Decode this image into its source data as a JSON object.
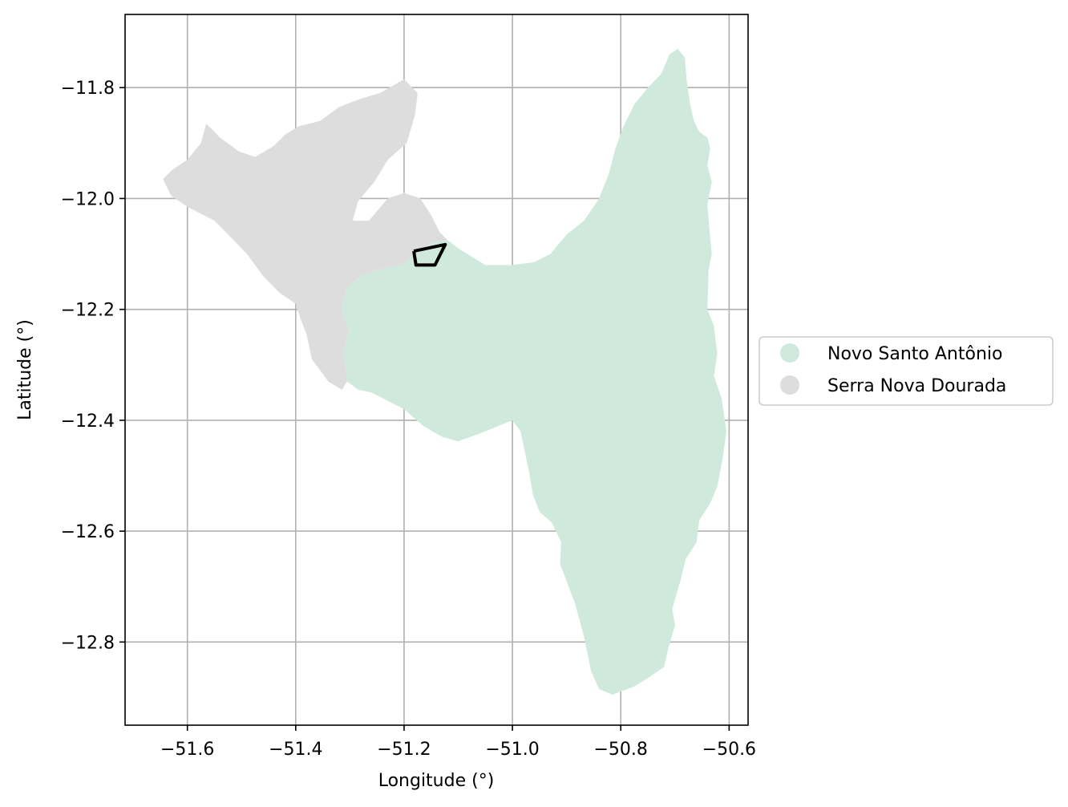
{
  "map": {
    "xlabel": "Longitude (°)",
    "ylabel": "Latitude (°)",
    "x_ticks": [
      {
        "value": -51.6,
        "label": "−51.6"
      },
      {
        "value": -51.4,
        "label": "−51.4"
      },
      {
        "value": -51.2,
        "label": "−51.2"
      },
      {
        "value": -51.0,
        "label": "−51.0"
      },
      {
        "value": -50.8,
        "label": "−50.8"
      },
      {
        "value": -50.6,
        "label": "−50.6"
      }
    ],
    "y_ticks": [
      {
        "value": -11.8,
        "label": "−11.8"
      },
      {
        "value": -12.0,
        "label": "−12.0"
      },
      {
        "value": -12.2,
        "label": "−12.2"
      },
      {
        "value": -12.4,
        "label": "−12.4"
      },
      {
        "value": -12.6,
        "label": "−12.6"
      },
      {
        "value": -12.8,
        "label": "−12.8"
      }
    ],
    "xlim": [
      -51.715,
      -50.565
    ],
    "ylim": [
      -12.95,
      -11.668
    ],
    "grid": true,
    "legend_position": "center-right, outside plot",
    "regions": [
      {
        "name": "Novo Santo Antônio",
        "color": "#cfeadd",
        "outline": [
          [
            -50.695,
            -11.73
          ],
          [
            -50.682,
            -11.745
          ],
          [
            -50.678,
            -11.79
          ],
          [
            -50.672,
            -11.83
          ],
          [
            -50.665,
            -11.86
          ],
          [
            -50.655,
            -11.88
          ],
          [
            -50.64,
            -11.89
          ],
          [
            -50.635,
            -11.91
          ],
          [
            -50.64,
            -11.94
          ],
          [
            -50.632,
            -11.97
          ],
          [
            -50.64,
            -12.01
          ],
          [
            -50.637,
            -12.05
          ],
          [
            -50.632,
            -12.1
          ],
          [
            -50.638,
            -12.13
          ],
          [
            -50.64,
            -12.2
          ],
          [
            -50.628,
            -12.23
          ],
          [
            -50.622,
            -12.28
          ],
          [
            -50.628,
            -12.32
          ],
          [
            -50.614,
            -12.36
          ],
          [
            -50.605,
            -12.42
          ],
          [
            -50.612,
            -12.47
          ],
          [
            -50.622,
            -12.52
          ],
          [
            -50.635,
            -12.55
          ],
          [
            -50.655,
            -12.58
          ],
          [
            -50.66,
            -12.62
          ],
          [
            -50.68,
            -12.65
          ],
          [
            -50.69,
            -12.69
          ],
          [
            -50.705,
            -12.74
          ],
          [
            -50.7,
            -12.77
          ],
          [
            -50.712,
            -12.81
          ],
          [
            -50.72,
            -12.845
          ],
          [
            -50.75,
            -12.865
          ],
          [
            -50.775,
            -12.88
          ],
          [
            -50.815,
            -12.895
          ],
          [
            -50.84,
            -12.885
          ],
          [
            -50.855,
            -12.852
          ],
          [
            -50.868,
            -12.79
          ],
          [
            -50.883,
            -12.735
          ],
          [
            -50.9,
            -12.69
          ],
          [
            -50.912,
            -12.66
          ],
          [
            -50.91,
            -12.62
          ],
          [
            -50.927,
            -12.585
          ],
          [
            -50.95,
            -12.565
          ],
          [
            -50.962,
            -12.535
          ],
          [
            -50.97,
            -12.49
          ],
          [
            -50.985,
            -12.42
          ],
          [
            -51.0,
            -12.4
          ],
          [
            -51.05,
            -12.42
          ],
          [
            -51.1,
            -12.438
          ],
          [
            -51.13,
            -12.43
          ],
          [
            -51.165,
            -12.41
          ],
          [
            -51.2,
            -12.38
          ],
          [
            -51.26,
            -12.35
          ],
          [
            -51.285,
            -12.345
          ],
          [
            -51.305,
            -12.33
          ],
          [
            -51.312,
            -12.28
          ],
          [
            -51.302,
            -12.24
          ],
          [
            -51.315,
            -12.2
          ],
          [
            -51.305,
            -12.16
          ],
          [
            -51.28,
            -12.14
          ],
          [
            -51.245,
            -12.128
          ],
          [
            -51.205,
            -12.12
          ],
          [
            -51.18,
            -12.1
          ],
          [
            -51.15,
            -12.08
          ],
          [
            -51.12,
            -12.075
          ],
          [
            -51.1,
            -12.09
          ],
          [
            -51.05,
            -12.12
          ],
          [
            -51.0,
            -12.12
          ],
          [
            -50.96,
            -12.115
          ],
          [
            -50.93,
            -12.1
          ],
          [
            -50.9,
            -12.065
          ],
          [
            -50.868,
            -12.04
          ],
          [
            -50.84,
            -12.0
          ],
          [
            -50.822,
            -11.955
          ],
          [
            -50.81,
            -11.91
          ],
          [
            -50.795,
            -11.87
          ],
          [
            -50.775,
            -11.83
          ],
          [
            -50.75,
            -11.8
          ],
          [
            -50.725,
            -11.775
          ],
          [
            -50.71,
            -11.74
          ],
          [
            -50.695,
            -11.73
          ]
        ]
      },
      {
        "name": "Serra Nova Dourada",
        "color": "#dddddd",
        "outline": [
          [
            -51.645,
            -11.965
          ],
          [
            -51.63,
            -11.95
          ],
          [
            -51.6,
            -11.93
          ],
          [
            -51.575,
            -11.9
          ],
          [
            -51.565,
            -11.865
          ],
          [
            -51.54,
            -11.89
          ],
          [
            -51.505,
            -11.915
          ],
          [
            -51.475,
            -11.925
          ],
          [
            -51.44,
            -11.905
          ],
          [
            -51.42,
            -11.885
          ],
          [
            -51.395,
            -11.87
          ],
          [
            -51.355,
            -11.86
          ],
          [
            -51.32,
            -11.835
          ],
          [
            -51.28,
            -11.82
          ],
          [
            -51.245,
            -11.81
          ],
          [
            -51.2,
            -11.785
          ],
          [
            -51.175,
            -11.81
          ],
          [
            -51.18,
            -11.85
          ],
          [
            -51.195,
            -11.9
          ],
          [
            -51.23,
            -11.93
          ],
          [
            -51.255,
            -11.97
          ],
          [
            -51.285,
            -12.005
          ],
          [
            -51.295,
            -12.04
          ],
          [
            -51.265,
            -12.04
          ],
          [
            -51.23,
            -12.0
          ],
          [
            -51.2,
            -11.99
          ],
          [
            -51.17,
            -12.0
          ],
          [
            -51.15,
            -12.03
          ],
          [
            -51.135,
            -12.06
          ],
          [
            -51.12,
            -12.075
          ],
          [
            -51.15,
            -12.08
          ],
          [
            -51.18,
            -12.1
          ],
          [
            -51.205,
            -12.12
          ],
          [
            -51.245,
            -12.128
          ],
          [
            -51.28,
            -12.14
          ],
          [
            -51.305,
            -12.16
          ],
          [
            -51.315,
            -12.2
          ],
          [
            -51.302,
            -12.24
          ],
          [
            -51.312,
            -12.28
          ],
          [
            -51.305,
            -12.33
          ],
          [
            -51.315,
            -12.345
          ],
          [
            -51.34,
            -12.33
          ],
          [
            -51.37,
            -12.29
          ],
          [
            -51.38,
            -12.245
          ],
          [
            -51.39,
            -12.22
          ],
          [
            -51.4,
            -12.19
          ],
          [
            -51.43,
            -12.17
          ],
          [
            -51.46,
            -12.14
          ],
          [
            -51.49,
            -12.1
          ],
          [
            -51.52,
            -12.07
          ],
          [
            -51.55,
            -12.04
          ],
          [
            -51.6,
            -12.015
          ],
          [
            -51.63,
            -11.995
          ],
          [
            -51.645,
            -11.965
          ]
        ]
      }
    ],
    "highlight_outline": {
      "color": "#000000",
      "points": [
        [
          -51.182,
          -12.095
        ],
        [
          -51.178,
          -12.12
        ],
        [
          -51.143,
          -12.12
        ],
        [
          -51.124,
          -12.083
        ],
        [
          -51.182,
          -12.095
        ]
      ]
    }
  }
}
